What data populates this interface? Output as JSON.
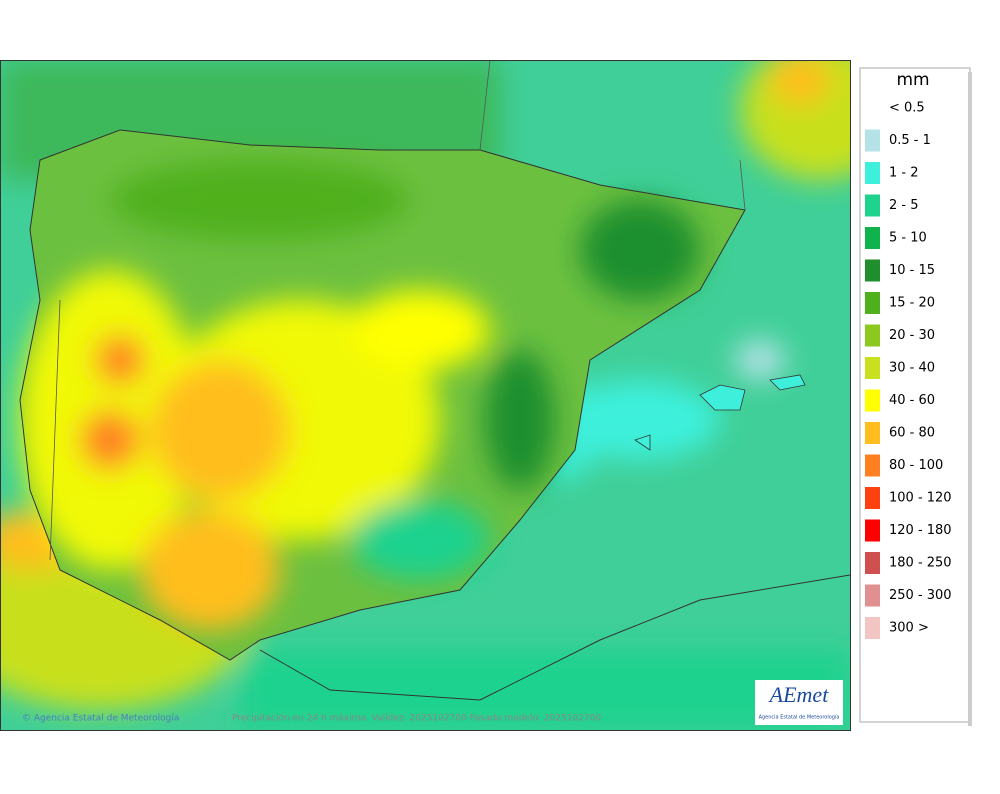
{
  "map": {
    "credit": "© Agencia Estatal de Meteorología",
    "caption": "Precipitación en 24 h máxima. Validez: 2025102700 Pasada modelo: 2025102700",
    "logo": {
      "name": "AEmet",
      "subtitle": "Agencia Estatal de Meteorología"
    }
  },
  "legend": {
    "unit": "mm",
    "items": [
      {
        "label": "< 0.5",
        "color": "#ffffff"
      },
      {
        "label": "0.5 - 1",
        "color": "#b4e2e6"
      },
      {
        "label": "1 - 2",
        "color": "#3ef0dc"
      },
      {
        "label": "2 - 5",
        "color": "#1fd28e"
      },
      {
        "label": "5 - 10",
        "color": "#10b24e"
      },
      {
        "label": "10 - 15",
        "color": "#1f8f2e"
      },
      {
        "label": "15 - 20",
        "color": "#4fb01e"
      },
      {
        "label": "20 - 30",
        "color": "#8cc81e"
      },
      {
        "label": "30 - 40",
        "color": "#c8e01e"
      },
      {
        "label": "40 - 60",
        "color": "#ffff00"
      },
      {
        "label": "60 - 80",
        "color": "#ffbe1e"
      },
      {
        "label": "80 - 100",
        "color": "#ff8020"
      },
      {
        "label": "100 - 120",
        "color": "#ff4010"
      },
      {
        "label": "120 - 180",
        "color": "#ff0000"
      },
      {
        "label": "180 - 250",
        "color": "#d05050"
      },
      {
        "label": "250 - 300",
        "color": "#e09090"
      },
      {
        "label": "300 >",
        "color": "#f2c4c4"
      }
    ]
  }
}
